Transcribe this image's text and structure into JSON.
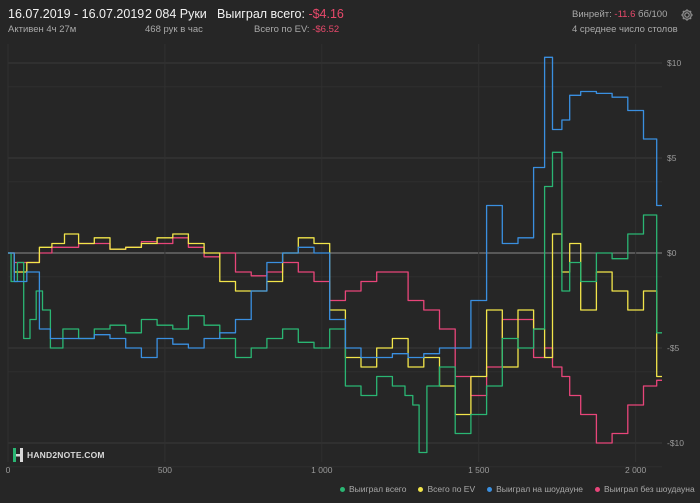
{
  "header": {
    "date_range": "16.07.2019 - 16.07.2019",
    "active": "Активен 4ч 27м",
    "hands": "2 084 Руки",
    "hands_per_hour": "468 рук в час",
    "won_total_label": "Выиграл всего:",
    "won_total_value": "-$4.16",
    "ev_total_label": "Всего по EV:",
    "ev_total_value": "-$6.52",
    "winrate_label": "Винрейт:",
    "winrate_value": "-11.6",
    "winrate_unit": "бб/100",
    "avg_tables": "4 среднее число столов"
  },
  "logo": {
    "text": "HAND2NOTE.COM"
  },
  "icons": {
    "settings": "gear-icon",
    "logo": "hand2note-logo-icon"
  },
  "colors": {
    "background": "#262626",
    "grid": "#3a3a3a",
    "zero_line": "#8a8a8a",
    "won_total": "#2ab673",
    "ev_total": "#f2e54a",
    "showdown": "#3a8fe0",
    "non_showdown": "#e8457a",
    "negative_text": "#e8496b"
  },
  "chart_data": {
    "type": "line",
    "title": "",
    "xlabel": "",
    "ylabel": "",
    "x_ticks": [
      "0",
      "500",
      "1 000",
      "1 500",
      "2 000"
    ],
    "x_tick_values": [
      0,
      500,
      1000,
      1500,
      2000
    ],
    "y_ticks": [
      "$10",
      "$5",
      "$0",
      "-$5",
      "-$10"
    ],
    "y_tick_values": [
      10,
      5,
      0,
      -5,
      -10
    ],
    "xlim": [
      0,
      2084
    ],
    "ylim": [
      -11,
      11
    ],
    "grid": "horizontal",
    "legend_position": "bottom-right",
    "series": [
      {
        "name": "Выиграл всего",
        "color": "#2ab673",
        "x": [
          0,
          20,
          40,
          60,
          80,
          100,
          120,
          150,
          200,
          250,
          300,
          350,
          400,
          450,
          500,
          550,
          600,
          650,
          700,
          750,
          800,
          850,
          900,
          950,
          1000,
          1050,
          1100,
          1150,
          1200,
          1250,
          1280,
          1300,
          1320,
          1350,
          1400,
          1450,
          1500,
          1550,
          1600,
          1650,
          1700,
          1720,
          1750,
          1780,
          1800,
          1850,
          1900,
          1950,
          2000,
          2050,
          2084
        ],
        "y": [
          0,
          -1.5,
          -0.5,
          -4.5,
          -3.5,
          -2,
          -3,
          -5,
          -4,
          -4.5,
          -4,
          -3.8,
          -4.2,
          -3.5,
          -3.8,
          -4,
          -3.3,
          -3.8,
          -4.5,
          -5.5,
          -5,
          -4.5,
          -4,
          -4.7,
          -5,
          -4,
          -7,
          -7.5,
          -6.5,
          -7,
          -7.5,
          -8,
          -10.5,
          -7,
          -6,
          -9.5,
          -8.5,
          -7,
          -4.5,
          -5,
          -4,
          3.5,
          5.3,
          -2,
          -0.5,
          -1.5,
          0,
          -0.3,
          1,
          2,
          -4.2
        ]
      },
      {
        "name": "Всего по EV",
        "color": "#f2e54a",
        "x": [
          0,
          40,
          80,
          120,
          160,
          200,
          250,
          300,
          350,
          400,
          450,
          500,
          550,
          600,
          650,
          700,
          750,
          800,
          850,
          900,
          950,
          1000,
          1050,
          1100,
          1150,
          1200,
          1250,
          1300,
          1350,
          1400,
          1450,
          1500,
          1550,
          1600,
          1650,
          1700,
          1720,
          1750,
          1780,
          1800,
          1850,
          1900,
          1950,
          2000,
          2050,
          2084
        ],
        "y": [
          0,
          -1,
          -0.5,
          0.3,
          0.5,
          1,
          0.5,
          0.8,
          0.2,
          0.3,
          0.5,
          0.8,
          1,
          0.5,
          0,
          -1.5,
          -2,
          -2,
          -1.5,
          0,
          0.8,
          0.5,
          -3,
          -5.5,
          -6,
          -5,
          -4.5,
          -6,
          -5.5,
          -7,
          -8.5,
          -6.5,
          -3,
          -6,
          -3,
          -4,
          -5.5,
          1,
          -1,
          0.5,
          -3,
          -1,
          -2,
          -3,
          -2,
          -6.5
        ]
      },
      {
        "name": "Выиграл на шоудауне",
        "color": "#3a8fe0",
        "x": [
          0,
          40,
          80,
          120,
          150,
          200,
          250,
          300,
          350,
          400,
          450,
          500,
          550,
          600,
          650,
          700,
          750,
          800,
          850,
          900,
          950,
          1000,
          1050,
          1100,
          1150,
          1200,
          1250,
          1300,
          1350,
          1400,
          1450,
          1500,
          1550,
          1600,
          1650,
          1700,
          1720,
          1750,
          1780,
          1800,
          1850,
          1900,
          1950,
          2000,
          2050,
          2084
        ],
        "y": [
          0,
          -1.5,
          -1,
          -4,
          -4.5,
          -4.5,
          -4.5,
          -4.3,
          -4.5,
          -5,
          -5.5,
          -4.5,
          -4.8,
          -5,
          -4.5,
          -4.2,
          -3.5,
          -2,
          -0.5,
          0,
          0.3,
          0,
          -3.5,
          -5,
          -5.5,
          -5.5,
          -5.3,
          -5.5,
          -5.3,
          -5,
          -5,
          -2.5,
          2.5,
          0.5,
          0.8,
          4.5,
          10.3,
          6.5,
          7,
          8.3,
          8.5,
          8.4,
          8.2,
          7.5,
          6,
          2.5
        ]
      },
      {
        "name": "Выиграл без шоудауна",
        "color": "#e8457a",
        "x": [
          0,
          40,
          80,
          120,
          160,
          200,
          250,
          300,
          350,
          400,
          450,
          500,
          550,
          600,
          650,
          700,
          750,
          800,
          850,
          900,
          950,
          1000,
          1050,
          1100,
          1150,
          1200,
          1250,
          1300,
          1350,
          1400,
          1450,
          1500,
          1550,
          1600,
          1650,
          1700,
          1720,
          1750,
          1780,
          1800,
          1850,
          1900,
          1950,
          2000,
          2050,
          2084
        ],
        "y": [
          0,
          -0.5,
          -0.5,
          0,
          0.3,
          0.3,
          0.5,
          0.5,
          0.2,
          0.3,
          0.6,
          0.5,
          0.8,
          0.3,
          -0.2,
          0,
          -1,
          -1.2,
          -1,
          -0.5,
          -1,
          -1.5,
          -2.5,
          -2,
          -1.5,
          -1,
          -1,
          -2.5,
          -3,
          -4,
          -6.5,
          -7.5,
          -6,
          -3.5,
          -3.5,
          -5.5,
          -5,
          -6,
          -6.5,
          -7.5,
          -8.5,
          -10,
          -9.5,
          -8,
          -7,
          -6.7
        ]
      }
    ]
  }
}
